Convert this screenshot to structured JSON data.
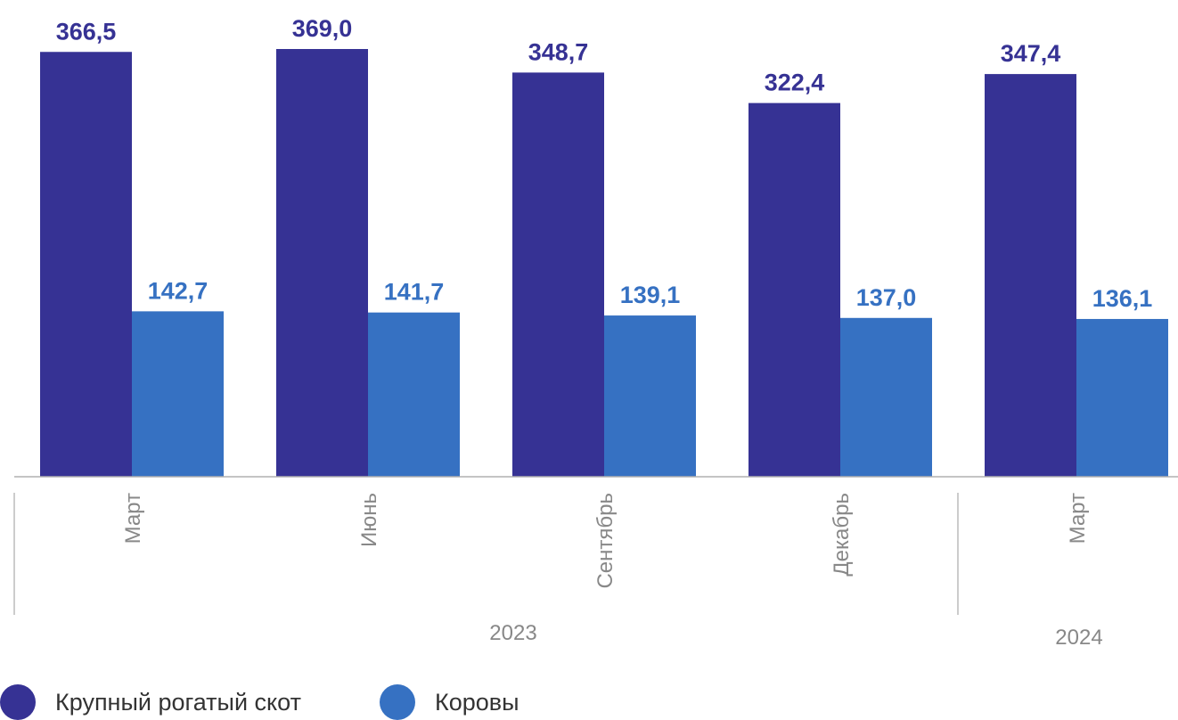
{
  "chart_data": {
    "type": "bar",
    "categories": [
      "Март",
      "Июнь",
      "Сентябрь",
      "Декабрь",
      "Март"
    ],
    "groups": [
      {
        "label": "2023",
        "categories": [
          "Март",
          "Июнь",
          "Сентябрь",
          "Декабрь"
        ]
      },
      {
        "label": "2024",
        "categories": [
          "Март"
        ]
      }
    ],
    "series": [
      {
        "name": "Крупный рогатый скот",
        "values": [
          366.5,
          369.0,
          348.7,
          322.4,
          347.4
        ],
        "labels": [
          "366,5",
          "369,0",
          "348,7",
          "322,4",
          "347,4"
        ],
        "color": "#363294"
      },
      {
        "name": "Коровы",
        "values": [
          142.7,
          141.7,
          139.1,
          137.0,
          136.1
        ],
        "labels": [
          "142,7",
          "141,7",
          "139,1",
          "137,0",
          "136,1"
        ],
        "color": "#3671c2"
      }
    ],
    "ylim": [
      0,
      369
    ],
    "grid": false,
    "legend": "bottom"
  },
  "colors": {
    "axis": "#b0b0b0",
    "tick_label": "#888888",
    "label_series_1": "#363294",
    "label_series_2": "#3671c2"
  }
}
